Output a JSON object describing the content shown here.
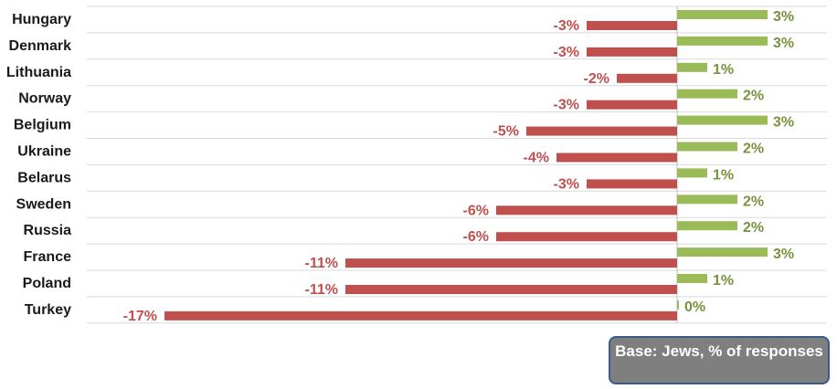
{
  "chart_data": {
    "type": "bar",
    "orientation": "horizontal",
    "title": "",
    "xlabel": "",
    "ylabel": "",
    "xlim": [
      -17,
      3
    ],
    "grid": "horizontal",
    "categories": [
      "Hungary",
      "Denmark",
      "Lithuania",
      "Norway",
      "Belgium",
      "Ukraine",
      "Belarus",
      "Sweden",
      "Russia",
      "France",
      "Poland",
      "Turkey"
    ],
    "series": [
      {
        "color": "#9bbb59",
        "values": [
          3,
          3,
          1,
          2,
          3,
          2,
          1,
          2,
          2,
          3,
          1,
          0
        ],
        "labels": [
          "3%",
          "3%",
          "1%",
          "2%",
          "3%",
          "2%",
          "1%",
          "2%",
          "2%",
          "3%",
          "1%",
          "0%"
        ]
      },
      {
        "color": "#c0504d",
        "values": [
          -3,
          -3,
          -2,
          -3,
          -5,
          -4,
          -3,
          -6,
          -6,
          -11,
          -11,
          -17
        ],
        "labels": [
          "-3%",
          "-3%",
          "-2%",
          "-3%",
          "-5%",
          "-4%",
          "-3%",
          "-6%",
          "-6%",
          "-11%",
          "-11%",
          "-17%"
        ]
      }
    ],
    "note": "Base: Jews, % of responses"
  }
}
